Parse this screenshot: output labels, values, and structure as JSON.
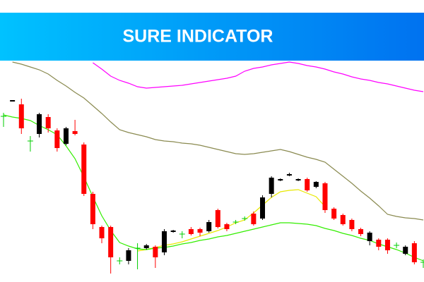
{
  "title": "SURE INDICATOR",
  "chart_data": {
    "type": "candlestick",
    "ylim": [
      0,
      312
    ],
    "up_color": "#000000",
    "down_color": "#ff0000",
    "doji_color": "#00cc00",
    "open": [
      235,
      257,
      252,
      200,
      210,
      234,
      215,
      196,
      214,
      195,
      125,
      78,
      78,
      30,
      30,
      48,
      48,
      50,
      42,
      71,
      68,
      75,
      75,
      72,
      102,
      82,
      85,
      90,
      97,
      90,
      125,
      144,
      151,
      144,
      146,
      135,
      140,
      104,
      95,
      88,
      75,
      58,
      60,
      60,
      52,
      40,
      55,
      28
    ],
    "high": [
      240,
      258,
      260,
      207,
      240,
      238,
      218,
      220,
      230,
      198,
      128,
      80,
      80,
      35,
      48,
      55,
      54,
      52,
      75,
      74,
      72,
      78,
      77,
      88,
      104,
      84,
      88,
      93,
      100,
      123,
      150,
      147,
      155,
      147,
      148,
      143,
      142,
      106,
      97,
      90,
      77,
      72,
      62,
      62,
      56,
      52,
      58,
      32
    ],
    "low": [
      220,
      257,
      210,
      185,
      205,
      212,
      185,
      194,
      208,
      122,
      75,
      55,
      12,
      25,
      25,
      18,
      46,
      20,
      38,
      70,
      62,
      66,
      65,
      70,
      76,
      72,
      82,
      87,
      80,
      88,
      120,
      143,
      150,
      143,
      128,
      133,
      98,
      88,
      80,
      72,
      65,
      52,
      45,
      40,
      48,
      38,
      25,
      20
    ],
    "close": [
      235,
      258,
      218,
      200,
      238,
      218,
      190,
      218,
      210,
      125,
      82,
      62,
      35,
      30,
      45,
      48,
      52,
      35,
      72,
      73,
      68,
      68,
      70,
      85,
      78,
      75,
      85,
      90,
      82,
      120,
      148,
      146,
      153,
      146,
      130,
      142,
      102,
      90,
      82,
      75,
      68,
      70,
      50,
      45,
      52,
      50,
      28,
      28
    ],
    "series": [
      {
        "color": "#ff00ff",
        "values": [
          null,
          null,
          null,
          null,
          null,
          null,
          null,
          null,
          null,
          null,
          311,
          302,
          292,
          286,
          282,
          277,
          275,
          276,
          277,
          278,
          279,
          281,
          283,
          285,
          287,
          289,
          292,
          299,
          303,
          305,
          308,
          310,
          312,
          310,
          307,
          305,
          302,
          298,
          295,
          291,
          288,
          286,
          283,
          281,
          278,
          275,
          272,
          270
        ]
      },
      {
        "color": "#8a8a50",
        "values": [
          null,
          312,
          309,
          305,
          301,
          295,
          286,
          278,
          269,
          261,
          250,
          239,
          227,
          216,
          212,
          209,
          206,
          202,
          200,
          199,
          197,
          196,
          194,
          191,
          188,
          185,
          182,
          181,
          182,
          184,
          186,
          188,
          185,
          181,
          177,
          174,
          170,
          160,
          150,
          140,
          129,
          119,
          108,
          96,
          93,
          91,
          90,
          88
        ]
      },
      {
        "color": "#e8e800",
        "values": [
          null,
          null,
          null,
          null,
          null,
          null,
          null,
          null,
          null,
          null,
          null,
          null,
          null,
          null,
          null,
          44,
          46,
          49,
          52,
          54,
          57,
          61,
          65,
          69,
          73,
          78,
          84,
          88,
          98,
          109,
          120,
          128,
          130,
          131,
          126,
          121,
          107,
          null,
          null,
          null,
          null,
          null,
          null,
          null,
          null,
          null,
          null,
          null
        ]
      },
      {
        "color": "#33ee00",
        "values": [
          237,
          234,
          232,
          229,
          222,
          216,
          209,
          193,
          175,
          149,
          121,
          94,
          73,
          56,
          51,
          47,
          46,
          48,
          49,
          51,
          54,
          56,
          59,
          61,
          64,
          66,
          69,
          72,
          75,
          78,
          81,
          84,
          84,
          83,
          82,
          80,
          76,
          73,
          69,
          66,
          62,
          59,
          54,
          50,
          46,
          41,
          35,
          30
        ]
      }
    ]
  }
}
